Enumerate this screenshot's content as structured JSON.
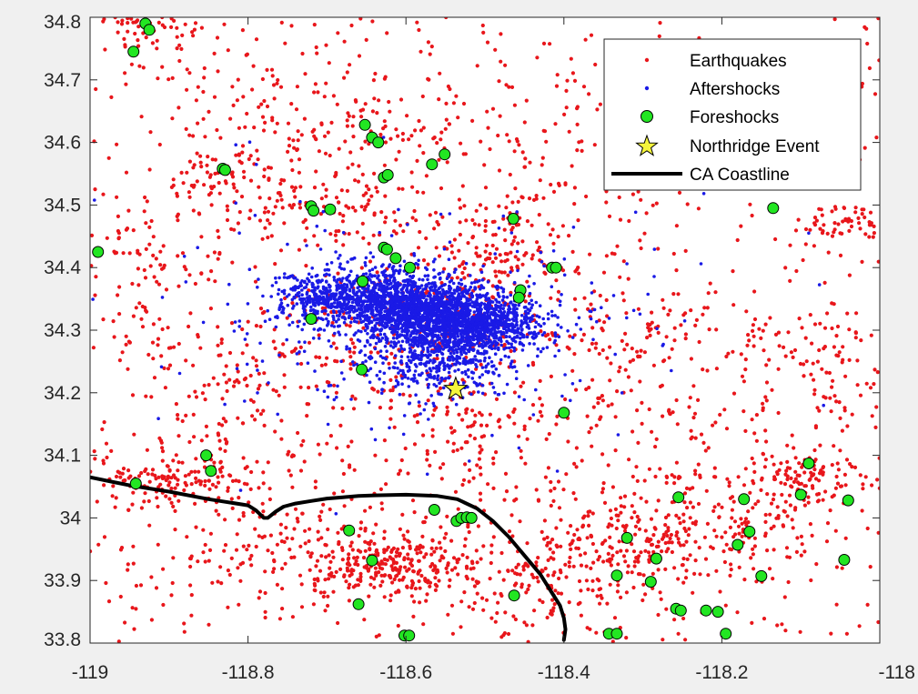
{
  "chart_data": {
    "type": "scatter",
    "title": "",
    "xlabel": "",
    "ylabel": "",
    "xlim": [
      -119,
      -118
    ],
    "ylim": [
      33.8,
      34.8
    ],
    "xticks": [
      -119,
      -118.8,
      -118.6,
      -118.4,
      -118.2,
      -118
    ],
    "xtick_labels": [
      "-119",
      "-118.8",
      "-118.6",
      "-118.4",
      "-118.2",
      "-118"
    ],
    "yticks": [
      33.8,
      33.9,
      34,
      34.1,
      34.2,
      34.3,
      34.4,
      34.5,
      34.6,
      34.7,
      34.8
    ],
    "ytick_labels": [
      "33.8",
      "33.9",
      "34",
      "34.1",
      "34.2",
      "34.3",
      "34.4",
      "34.5",
      "34.6",
      "34.7",
      "34.8"
    ],
    "grid": false,
    "legend_position": "top-right",
    "colors": {
      "earthquakes": "#e8161b",
      "aftershocks": "#1a1ae6",
      "foreshocks_fill": "#22e622",
      "star_fill": "#f5f53c",
      "coastline": "#000000"
    },
    "series": [
      {
        "name": "Earthquakes",
        "marker": "dot",
        "color": "#e8161b",
        "clusters": [
          {
            "center": [
              -118.62,
              33.92
            ],
            "spread": [
              0.05,
              0.025
            ],
            "count": 230
          },
          {
            "center": [
              -118.48,
              34.42
            ],
            "spread": [
              0.05,
              0.05
            ],
            "count": 140
          },
          {
            "center": [
              -118.09,
              34.06
            ],
            "spread": [
              0.03,
              0.02
            ],
            "count": 90
          },
          {
            "center": [
              -118.32,
              33.95
            ],
            "spread": [
              0.07,
              0.04
            ],
            "count": 200
          },
          {
            "center": [
              -118.9,
              34.06
            ],
            "spread": [
              0.06,
              0.02
            ],
            "count": 150
          },
          {
            "center": [
              -118.2,
              33.99
            ],
            "spread": [
              0.08,
              0.05
            ],
            "count": 180
          },
          {
            "center": [
              -118.92,
              34.79
            ],
            "spread": [
              0.03,
              0.02
            ],
            "count": 60
          },
          {
            "center": [
              -118.7,
              34.49
            ],
            "spread": [
              0.08,
              0.03
            ],
            "count": 110
          },
          {
            "center": [
              -118.6,
              34.28
            ],
            "spread": [
              0.12,
              0.08
            ],
            "count": 260
          },
          {
            "center": [
              -118.52,
              34.14
            ],
            "spread": [
              0.03,
              0.05
            ],
            "count": 70
          },
          {
            "center": [
              -118.95,
              34.4
            ],
            "spread": [
              0.05,
              0.05
            ],
            "count": 70
          },
          {
            "center": [
              -118.45,
              33.9
            ],
            "spread": [
              0.07,
              0.06
            ],
            "count": 150
          },
          {
            "center": [
              -118.25,
              34.3
            ],
            "spread": [
              0.1,
              0.05
            ],
            "count": 110
          },
          {
            "center": [
              -118.3,
              34.15
            ],
            "spread": [
              0.15,
              0.06
            ],
            "count": 110
          },
          {
            "center": [
              -118.04,
              34.47
            ],
            "spread": [
              0.05,
              0.02
            ],
            "count": 70
          },
          {
            "center": [
              -118.07,
              34.25
            ],
            "spread": [
              0.05,
              0.04
            ],
            "count": 60
          },
          {
            "center": [
              -118.82,
              34.2
            ],
            "spread": [
              0.07,
              0.08
            ],
            "count": 110
          },
          {
            "center": [
              -118.74,
              33.95
            ],
            "spread": [
              0.1,
              0.04
            ],
            "count": 170
          },
          {
            "center": [
              -118.65,
              34.62
            ],
            "spread": [
              0.05,
              0.04
            ],
            "count": 60
          },
          {
            "center": [
              -118.5,
              34.6
            ],
            "spread": [
              0.15,
              0.08
            ],
            "count": 120
          },
          {
            "center": [
              -118.83,
              34.55
            ],
            "spread": [
              0.05,
              0.02
            ],
            "count": 60
          },
          {
            "center": [
              -118.1,
              34.7
            ],
            "spread": [
              0.12,
              0.06
            ],
            "count": 50
          },
          {
            "center": [
              -118.8,
              34.7
            ],
            "spread": [
              0.1,
              0.06
            ],
            "count": 80
          }
        ],
        "uniform_background_count": 700
      },
      {
        "name": "Aftershocks",
        "marker": "dot",
        "color": "#1a1ae6",
        "clusters": [
          {
            "center": [
              -118.57,
              34.33
            ],
            "spread": [
              0.04,
              0.025
            ],
            "count": 900
          },
          {
            "center": [
              -118.51,
              34.31
            ],
            "spread": [
              0.04,
              0.02
            ],
            "count": 800
          },
          {
            "center": [
              -118.63,
              34.35
            ],
            "spread": [
              0.04,
              0.025
            ],
            "count": 600
          },
          {
            "center": [
              -118.7,
              34.35
            ],
            "spread": [
              0.04,
              0.02
            ],
            "count": 350
          },
          {
            "center": [
              -118.56,
              34.26
            ],
            "spread": [
              0.04,
              0.03
            ],
            "count": 400
          },
          {
            "center": [
              -118.58,
              34.3
            ],
            "spread": [
              0.1,
              0.06
            ],
            "count": 450
          },
          {
            "center": [
              -118.6,
              34.33
            ],
            "spread": [
              0.2,
              0.12
            ],
            "count": 150
          }
        ]
      },
      {
        "name": "Foreshocks",
        "marker": "circle",
        "color": "#22e622",
        "points": [
          [
            -118.93,
            34.79
          ],
          [
            -118.925,
            34.78
          ],
          [
            -118.945,
            34.745
          ],
          [
            -118.99,
            34.425
          ],
          [
            -118.652,
            34.628
          ],
          [
            -118.643,
            34.608
          ],
          [
            -118.635,
            34.6
          ],
          [
            -118.628,
            34.544
          ],
          [
            -118.623,
            34.548
          ],
          [
            -118.832,
            34.558
          ],
          [
            -118.829,
            34.556
          ],
          [
            -118.72,
            34.498
          ],
          [
            -118.717,
            34.491
          ],
          [
            -118.696,
            34.493
          ],
          [
            -118.567,
            34.565
          ],
          [
            -118.551,
            34.581
          ],
          [
            -118.628,
            34.432
          ],
          [
            -118.624,
            34.429
          ],
          [
            -118.613,
            34.415
          ],
          [
            -118.595,
            34.4
          ],
          [
            -118.655,
            34.378
          ],
          [
            -118.72,
            34.318
          ],
          [
            -118.464,
            34.478
          ],
          [
            -118.415,
            34.4
          ],
          [
            -118.41,
            34.4
          ],
          [
            -118.455,
            34.364
          ],
          [
            -118.457,
            34.352
          ],
          [
            -118.656,
            34.237
          ],
          [
            -118.4,
            34.168
          ],
          [
            -118.853,
            34.1
          ],
          [
            -118.847,
            34.075
          ],
          [
            -118.942,
            34.055
          ],
          [
            -118.672,
            33.98
          ],
          [
            -118.564,
            34.013
          ],
          [
            -118.536,
            33.995
          ],
          [
            -118.53,
            34
          ],
          [
            -118.523,
            34.001
          ],
          [
            -118.517,
            34
          ],
          [
            -118.643,
            33.932
          ],
          [
            -118.66,
            33.862
          ],
          [
            -118.602,
            33.812
          ],
          [
            -118.596,
            33.812
          ],
          [
            -118.463,
            33.876
          ],
          [
            -118.343,
            33.815
          ],
          [
            -118.333,
            33.815
          ],
          [
            -118.32,
            33.968
          ],
          [
            -118.333,
            33.908
          ],
          [
            -118.283,
            33.935
          ],
          [
            -118.29,
            33.898
          ],
          [
            -118.258,
            33.855
          ],
          [
            -118.252,
            33.852
          ],
          [
            -118.255,
            34.033
          ],
          [
            -118.22,
            33.852
          ],
          [
            -118.205,
            33.85
          ],
          [
            -118.195,
            33.815
          ],
          [
            -118.18,
            33.957
          ],
          [
            -118.165,
            33.978
          ],
          [
            -118.172,
            34.03
          ],
          [
            -118.15,
            33.907
          ],
          [
            -118.1,
            34.037
          ],
          [
            -118.09,
            34.087
          ],
          [
            -118.04,
            34.028
          ],
          [
            -118.045,
            33.933
          ],
          [
            -118.135,
            34.495
          ]
        ]
      },
      {
        "name": "Northridge Event",
        "marker": "star",
        "color": "#f5f53c",
        "points": [
          [
            -118.537,
            34.206
          ]
        ]
      },
      {
        "name": "CA Coastline",
        "marker": "line",
        "color": "#000000",
        "points": [
          [
            -119,
            34.065
          ],
          [
            -118.95,
            34.052
          ],
          [
            -118.9,
            34.042
          ],
          [
            -118.85,
            34.03
          ],
          [
            -118.8,
            34.02
          ],
          [
            -118.79,
            34.012
          ],
          [
            -118.78,
            34.0
          ],
          [
            -118.775,
            34.0
          ],
          [
            -118.765,
            34.01
          ],
          [
            -118.755,
            34.018
          ],
          [
            -118.74,
            34.023
          ],
          [
            -118.72,
            34.027
          ],
          [
            -118.7,
            34.031
          ],
          [
            -118.68,
            34.033
          ],
          [
            -118.66,
            34.035
          ],
          [
            -118.64,
            34.036
          ],
          [
            -118.6,
            34.037
          ],
          [
            -118.56,
            34.035
          ],
          [
            -118.535,
            34.03
          ],
          [
            -118.51,
            34.015
          ],
          [
            -118.49,
            33.995
          ],
          [
            -118.47,
            33.97
          ],
          [
            -118.45,
            33.94
          ],
          [
            -118.43,
            33.91
          ],
          [
            -118.415,
            33.88
          ],
          [
            -118.405,
            33.86
          ],
          [
            -118.4,
            33.84
          ],
          [
            -118.398,
            33.822
          ],
          [
            -118.4,
            33.805
          ]
        ]
      }
    ]
  },
  "legend": {
    "items": [
      {
        "label": "Earthquakes",
        "marker": "dot",
        "color": "#e8161b"
      },
      {
        "label": "Aftershocks",
        "marker": "dot",
        "color": "#1a1ae6"
      },
      {
        "label": "Foreshocks",
        "marker": "circle",
        "color": "#22e622"
      },
      {
        "label": "Northridge Event",
        "marker": "star",
        "color": "#f5f53c"
      },
      {
        "label": "CA Coastline",
        "marker": "line",
        "color": "#000000"
      }
    ]
  }
}
